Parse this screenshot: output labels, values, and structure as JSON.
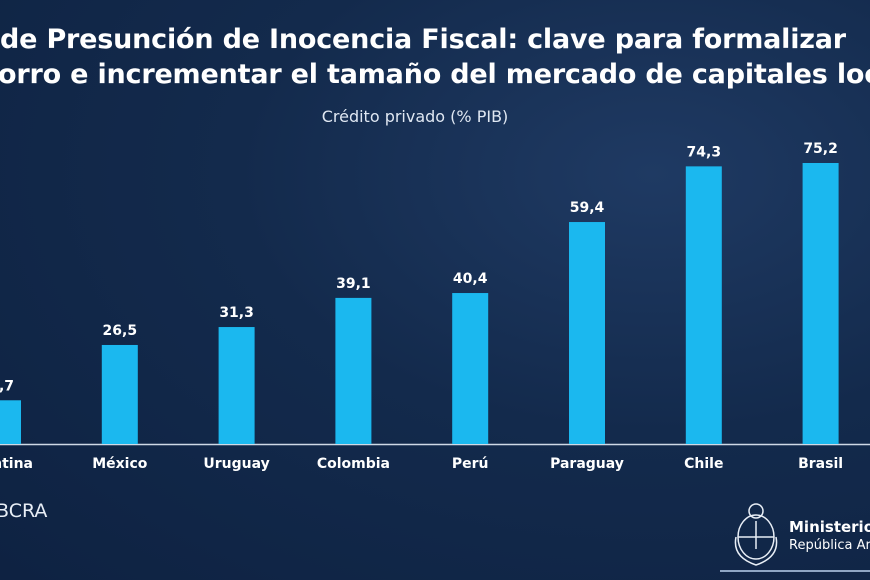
{
  "header": {
    "title_line1": "de Presunción de Inocencia Fiscal: clave para formalizar",
    "title_line2": "orro e incrementar el tamaño del mercado de capitales loc"
  },
  "chart_data": {
    "type": "bar",
    "title": "Crédito privado (% PIB)",
    "categories": [
      "ntina",
      "México",
      "Uruguay",
      "Colombia",
      "Perú",
      "Paraguay",
      "Chile",
      "Brasil"
    ],
    "values": [
      11.7,
      26.5,
      31.3,
      39.1,
      40.4,
      59.4,
      74.3,
      75.2
    ],
    "labels": [
      ",7",
      "26,5",
      "31,3",
      "39,1",
      "40,4",
      "59,4",
      "74,3",
      "75,2"
    ],
    "ylim": [
      0,
      80
    ],
    "grid": false,
    "bar_color": "#1bb8ef"
  },
  "footer": {
    "source": "BCRA",
    "ministry_line1": "Ministerio d",
    "ministry_line2": "República Arg"
  }
}
